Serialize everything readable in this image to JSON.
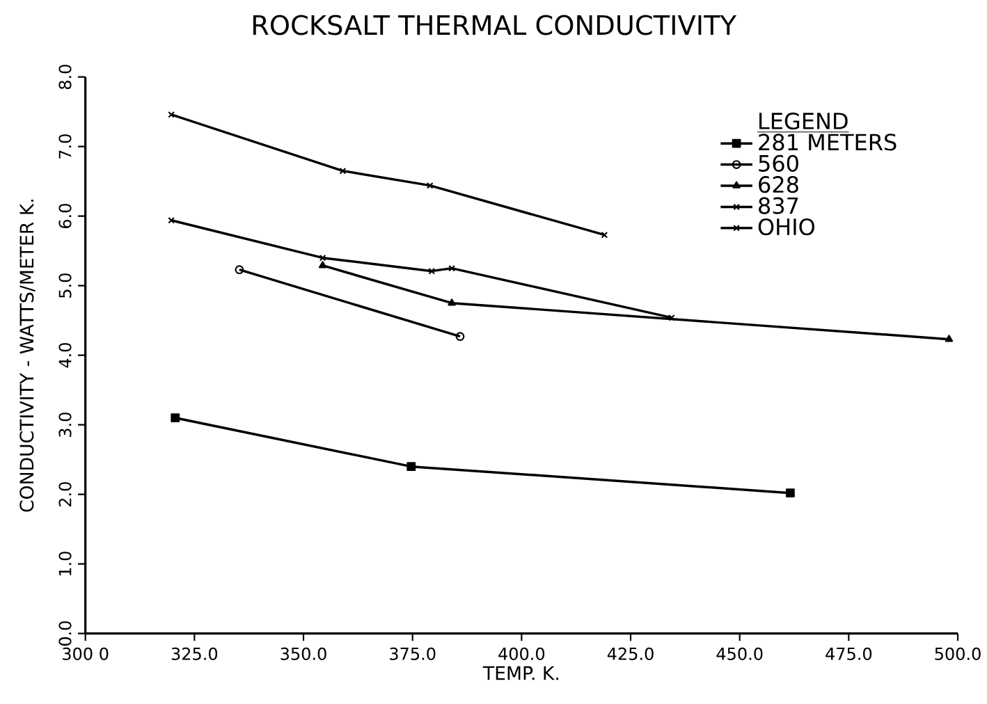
{
  "chart_data": {
    "type": "line",
    "title": "ROCKSALT THERMAL CONDUCTIVITY",
    "xlabel": "TEMP. K.",
    "ylabel": "CONDUCTIVITY - WATTS/METER K.",
    "legend_title": "LEGEND",
    "legend": "top right",
    "grid": false,
    "line_style": "solid",
    "xlim": [
      300,
      500
    ],
    "ylim": [
      0,
      8
    ],
    "xticks": [
      {
        "value": 300,
        "label": "300 0"
      },
      {
        "value": 325,
        "label": "325.0"
      },
      {
        "value": 350,
        "label": "350.0"
      },
      {
        "value": 375,
        "label": "375.0"
      },
      {
        "value": 400,
        "label": "400.0"
      },
      {
        "value": 425,
        "label": "425.0"
      },
      {
        "value": 450,
        "label": "450.0"
      },
      {
        "value": 475,
        "label": "475.0"
      },
      {
        "value": 500,
        "label": "500.0"
      }
    ],
    "yticks": [
      {
        "value": 0,
        "label": "0.0"
      },
      {
        "value": 1,
        "label": "1.0"
      },
      {
        "value": 2,
        "label": "2.0"
      },
      {
        "value": 3,
        "label": "3.0"
      },
      {
        "value": 4,
        "label": "4.0"
      },
      {
        "value": 5,
        "label": "5.0"
      },
      {
        "value": 6,
        "label": "6.0"
      },
      {
        "value": 7,
        "label": "7.0"
      },
      {
        "value": 8,
        "label": "8.0"
      }
    ],
    "series": [
      {
        "name": "281 METERS",
        "color": "#000000",
        "marker": "square",
        "x": [
          320.6,
          374.7,
          461.6
        ],
        "values": [
          3.1,
          2.4,
          2.02
        ]
      },
      {
        "name": "560",
        "color": "#000000",
        "marker": "circle",
        "x": [
          335.3,
          385.9
        ],
        "values": [
          5.23,
          4.27
        ]
      },
      {
        "name": "628",
        "color": "#000000",
        "marker": "triangle",
        "x": [
          354.4,
          384,
          498
        ],
        "values": [
          5.29,
          4.75,
          4.23
        ]
      },
      {
        "name": "837",
        "color": "#000000",
        "marker": "cross",
        "x": [
          319.7,
          359,
          379,
          419
        ],
        "values": [
          7.46,
          6.65,
          6.44,
          5.73
        ]
      },
      {
        "name": "OHIO",
        "color": "#000000",
        "marker": "cross",
        "x": [
          319.7,
          354.4,
          379.4,
          384,
          434.4
        ],
        "values": [
          5.94,
          5.4,
          5.21,
          5.25,
          4.54
        ]
      }
    ]
  }
}
